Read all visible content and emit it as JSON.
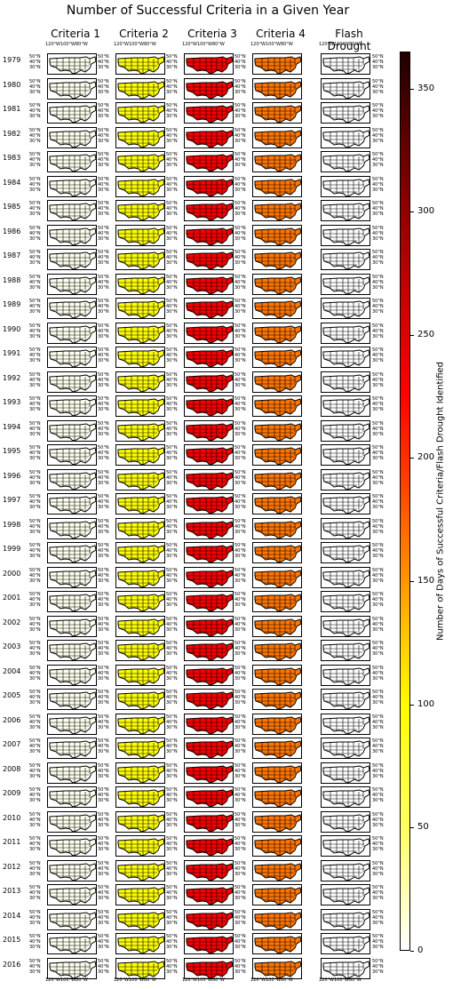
{
  "chart_data": {
    "type": "heatmap",
    "title": "Number of Successful Criteria in a Given Year",
    "columns": [
      "Criteria 1",
      "Criteria 2",
      "Criteria 3",
      "Criteria 4",
      "Flash Drought"
    ],
    "years": [
      "1979",
      "1980",
      "1981",
      "1982",
      "1983",
      "1984",
      "1985",
      "1986",
      "1987",
      "1988",
      "1989",
      "1990",
      "1991",
      "1992",
      "1993",
      "1994",
      "1995",
      "1996",
      "1997",
      "1998",
      "1999",
      "2000",
      "2001",
      "2002",
      "2003",
      "2004",
      "2005",
      "2006",
      "2007",
      "2008",
      "2009",
      "2010",
      "2011",
      "2012",
      "2013",
      "2014",
      "2015",
      "2016"
    ],
    "lon_ticks": [
      "120°W",
      "100°W",
      "80°W"
    ],
    "lat_ticks": [
      "50°N",
      "40°N",
      "30°N"
    ],
    "colorbar": {
      "label": "Number of Days of Successful Criteria/Flash Drought Identified",
      "ticks": [
        "0",
        "50",
        "100",
        "150",
        "200",
        "250",
        "300",
        "350"
      ],
      "range": [
        0,
        365
      ],
      "colormap": "hot_r"
    },
    "typical_panel_value": {
      "Criteria 1": 5,
      "Criteria 2": 95,
      "Criteria 3": 230,
      "Criteria 4": 165,
      "Flash Drought": 0
    }
  }
}
